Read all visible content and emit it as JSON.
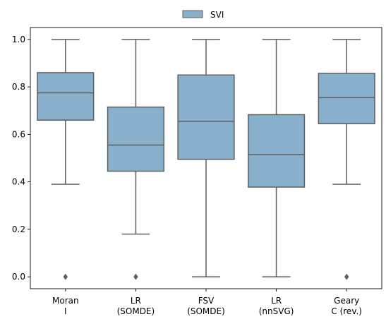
{
  "chart_data": {
    "type": "box",
    "categories": [
      [
        "Moran",
        "I"
      ],
      [
        "LR",
        "(SOMDE)"
      ],
      [
        "FSV",
        "(SOMDE)"
      ],
      [
        "LR",
        "(nnSVG)"
      ],
      [
        "Geary",
        "C (rev.)"
      ]
    ],
    "series": [
      {
        "name": "SVI",
        "color": "#88b0cc",
        "boxes": [
          {
            "whisker_low": 0.39,
            "q1": 0.66,
            "median": 0.775,
            "q3": 0.86,
            "whisker_high": 1.0,
            "outliers": [
              0.0
            ]
          },
          {
            "whisker_low": 0.18,
            "q1": 0.445,
            "median": 0.555,
            "q3": 0.715,
            "whisker_high": 1.0,
            "outliers": [
              0.0
            ]
          },
          {
            "whisker_low": 0.0,
            "q1": 0.495,
            "median": 0.655,
            "q3": 0.85,
            "whisker_high": 1.0,
            "outliers": []
          },
          {
            "whisker_low": 0.0,
            "q1": 0.378,
            "median": 0.515,
            "q3": 0.683,
            "whisker_high": 1.0,
            "outliers": []
          },
          {
            "whisker_low": 0.39,
            "q1": 0.645,
            "median": 0.755,
            "q3": 0.857,
            "whisker_high": 1.0,
            "outliers": [
              0.0
            ]
          }
        ]
      }
    ],
    "title": "",
    "xlabel": "",
    "ylabel": "",
    "ylim": [
      -0.05,
      1.05
    ],
    "yticks": [
      "0.0",
      "0.2",
      "0.4",
      "0.6",
      "0.8",
      "1.0"
    ],
    "grid": false,
    "legend": "top-center",
    "line_color": "#5f5f5f"
  }
}
